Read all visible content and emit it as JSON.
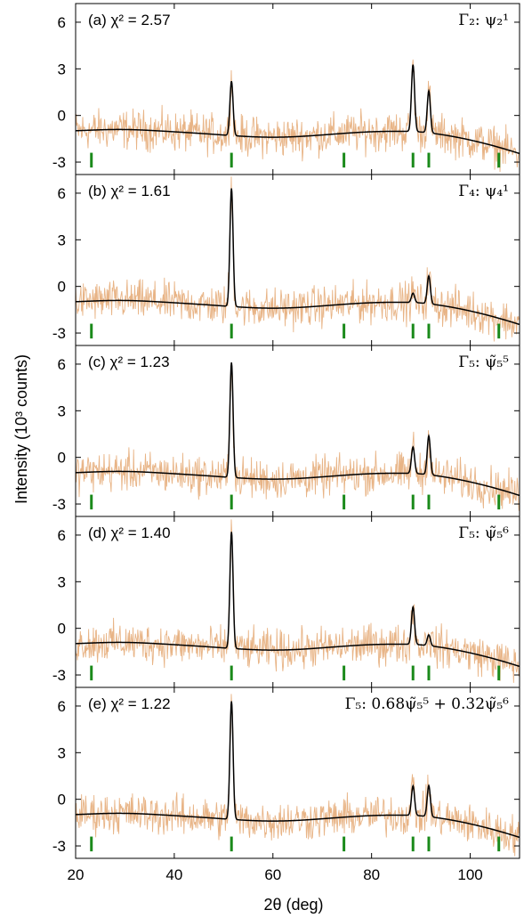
{
  "chart_data": {
    "type": "line",
    "xlabel": "2θ (deg)",
    "ylabel": "Intensity (10³ counts)",
    "xlim": [
      20,
      110
    ],
    "ylim": [
      -3.8,
      7.2
    ],
    "xticks": [
      20,
      40,
      60,
      80,
      100
    ],
    "yticks": [
      -3,
      0,
      3,
      6
    ],
    "bragg_positions": [
      23.2,
      51.6,
      74.4,
      88.4,
      91.6,
      105.8
    ],
    "bragg_color": "#1a8a1a",
    "observed_color": "#e8b486",
    "calc_color": "#000000",
    "panels": [
      {
        "tag": "(a)",
        "chi2_label": "χ² = 2.57",
        "irrep": "Γ₂: ψ₂¹",
        "peaks": [
          {
            "x": 51.6,
            "height": 3.5
          },
          {
            "x": 88.4,
            "height": 4.3
          },
          {
            "x": 91.6,
            "height": 2.7
          }
        ]
      },
      {
        "tag": "(b)",
        "chi2_label": "χ² = 1.61",
        "irrep": "Γ₄: ψ₄¹",
        "peaks": [
          {
            "x": 51.6,
            "height": 7.6
          },
          {
            "x": 88.4,
            "height": 0.6
          },
          {
            "x": 91.6,
            "height": 1.8
          }
        ]
      },
      {
        "tag": "(c)",
        "chi2_label": "χ² = 1.23",
        "irrep": "Γ₅: ψ̃₅⁵",
        "peaks": [
          {
            "x": 51.6,
            "height": 7.4
          },
          {
            "x": 88.4,
            "height": 1.7
          },
          {
            "x": 91.6,
            "height": 2.5
          }
        ]
      },
      {
        "tag": "(d)",
        "chi2_label": "χ² = 1.40",
        "irrep": "Γ₅: ψ̃₅⁶",
        "peaks": [
          {
            "x": 51.6,
            "height": 7.5
          },
          {
            "x": 88.4,
            "height": 2.4
          },
          {
            "x": 91.6,
            "height": 0.7
          }
        ]
      },
      {
        "tag": "(e)",
        "chi2_label": "χ² = 1.22",
        "irrep": "Γ₅: 0.68ψ̃₅⁵ + 0.32ψ̃₅⁶",
        "peaks": [
          {
            "x": 51.6,
            "height": 7.6
          },
          {
            "x": 88.4,
            "height": 1.9
          },
          {
            "x": 91.6,
            "height": 2.0
          }
        ]
      }
    ]
  }
}
